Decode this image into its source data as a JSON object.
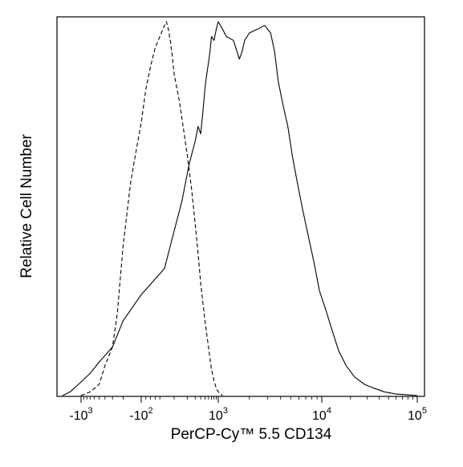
{
  "chart_data": {
    "type": "line",
    "title": "",
    "xlabel": "PerCP-Cy™ 5.5 CD134",
    "ylabel": "Relative Cell Number",
    "x_scale": "biexponential",
    "x_ticks": [
      {
        "value": -1000,
        "label_base": "-10",
        "label_exp": "3"
      },
      {
        "value": -100,
        "label_base": "-10",
        "label_exp": "2"
      },
      {
        "value": 1000,
        "label_base": "10",
        "label_exp": "3"
      },
      {
        "value": 10000,
        "label_base": "10",
        "label_exp": "4"
      },
      {
        "value": 100000,
        "label_base": "10",
        "label_exp": "5"
      }
    ],
    "xlim": [
      -2000,
      200000
    ],
    "ylim": [
      0,
      100
    ],
    "y_ticks_shown": false,
    "grid": false,
    "legend": "none",
    "series": [
      {
        "line_style": "dashed",
        "color": "#000000",
        "points": [
          [
            -1000,
            0
          ],
          [
            -700,
            1
          ],
          [
            -500,
            3
          ],
          [
            -400,
            8
          ],
          [
            -300,
            13
          ],
          [
            -250,
            22
          ],
          [
            -200,
            40
          ],
          [
            -150,
            57
          ],
          [
            -120,
            66
          ],
          [
            -100,
            73
          ],
          [
            -80,
            82
          ],
          [
            -60,
            88
          ],
          [
            -40,
            93
          ],
          [
            -20,
            96
          ],
          [
            0,
            99
          ],
          [
            20,
            100
          ],
          [
            40,
            98
          ],
          [
            60,
            95
          ],
          [
            80,
            91
          ],
          [
            100,
            86
          ],
          [
            130,
            79
          ],
          [
            160,
            72
          ],
          [
            200,
            64
          ],
          [
            250,
            55
          ],
          [
            300,
            46
          ],
          [
            350,
            38
          ],
          [
            400,
            30
          ],
          [
            500,
            20
          ],
          [
            600,
            13
          ],
          [
            700,
            7
          ],
          [
            800,
            4
          ],
          [
            900,
            2
          ],
          [
            1000,
            1
          ],
          [
            1100,
            0
          ]
        ]
      },
      {
        "line_style": "solid",
        "color": "#000000",
        "points": [
          [
            -2000,
            0
          ],
          [
            -1500,
            1
          ],
          [
            -1100,
            3
          ],
          [
            -700,
            6
          ],
          [
            -500,
            9
          ],
          [
            -300,
            13
          ],
          [
            -200,
            20
          ],
          [
            -100,
            27
          ],
          [
            0,
            34
          ],
          [
            80,
            42
          ],
          [
            150,
            52
          ],
          [
            220,
            62
          ],
          [
            300,
            68
          ],
          [
            350,
            72
          ],
          [
            400,
            70
          ],
          [
            450,
            76
          ],
          [
            500,
            82
          ],
          [
            550,
            86
          ],
          [
            600,
            89
          ],
          [
            650,
            92
          ],
          [
            700,
            96
          ],
          [
            800,
            95
          ],
          [
            900,
            98
          ],
          [
            1000,
            100
          ],
          [
            1100,
            98
          ],
          [
            1200,
            96
          ],
          [
            1400,
            95
          ],
          [
            1600,
            90
          ],
          [
            1700,
            92
          ],
          [
            1800,
            95
          ],
          [
            2000,
            97
          ],
          [
            2400,
            98
          ],
          [
            2800,
            99
          ],
          [
            3200,
            97
          ],
          [
            3500,
            92
          ],
          [
            3800,
            84
          ],
          [
            4200,
            78
          ],
          [
            4700,
            72
          ],
          [
            5200,
            64
          ],
          [
            5800,
            57
          ],
          [
            6500,
            50
          ],
          [
            7500,
            42
          ],
          [
            8500,
            35
          ],
          [
            9500,
            28
          ],
          [
            11000,
            23
          ],
          [
            13000,
            17
          ],
          [
            15000,
            12
          ],
          [
            18000,
            8
          ],
          [
            22000,
            5
          ],
          [
            28000,
            3
          ],
          [
            35000,
            2
          ],
          [
            45000,
            1
          ],
          [
            60000,
            0.4
          ],
          [
            80000,
            0.2
          ],
          [
            100000,
            0
          ]
        ]
      }
    ]
  }
}
